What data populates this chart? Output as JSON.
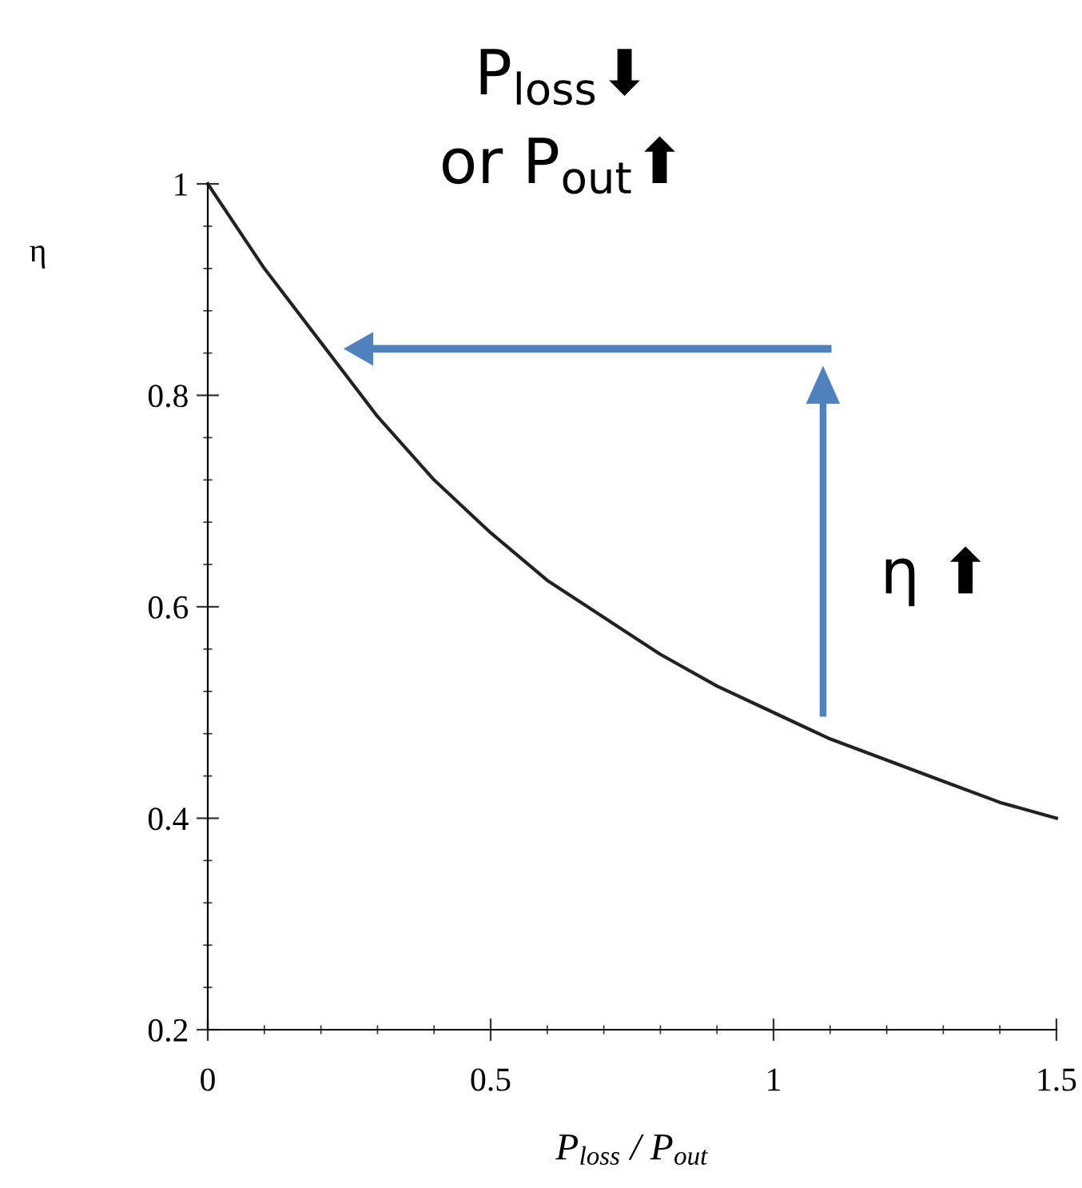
{
  "chart_data": {
    "type": "line",
    "xlabel": "P$_{loss}$ / P$_{out}$",
    "ylabel": "η",
    "annotations": [
      "P$_{loss}$⬇",
      "or P$_{out}$⬆",
      "η ⬆"
    ],
    "x": [
      0,
      0.1,
      0.2,
      0.3,
      0.4,
      0.5,
      0.6,
      0.7,
      0.8,
      0.9,
      1.0,
      1.1,
      1.2,
      1.3,
      1.4,
      1.5
    ],
    "series": [
      {
        "color": "#222222",
        "values": [
          1,
          0.92,
          0.85,
          0.78,
          0.72,
          0.67,
          0.625,
          0.59,
          0.555,
          0.525,
          0.5,
          0.475,
          0.455,
          0.435,
          0.415,
          0.4
        ]
      }
    ],
    "xlim": [
      0,
      1.5
    ],
    "xticks": [
      0,
      0.5,
      1,
      1.5
    ],
    "ylim": [
      0.2,
      1
    ],
    "yticks": [
      0.2,
      0.4,
      0.6,
      0.8,
      1
    ],
    "grid": false,
    "marker": "none",
    "line_style": "solid"
  }
}
